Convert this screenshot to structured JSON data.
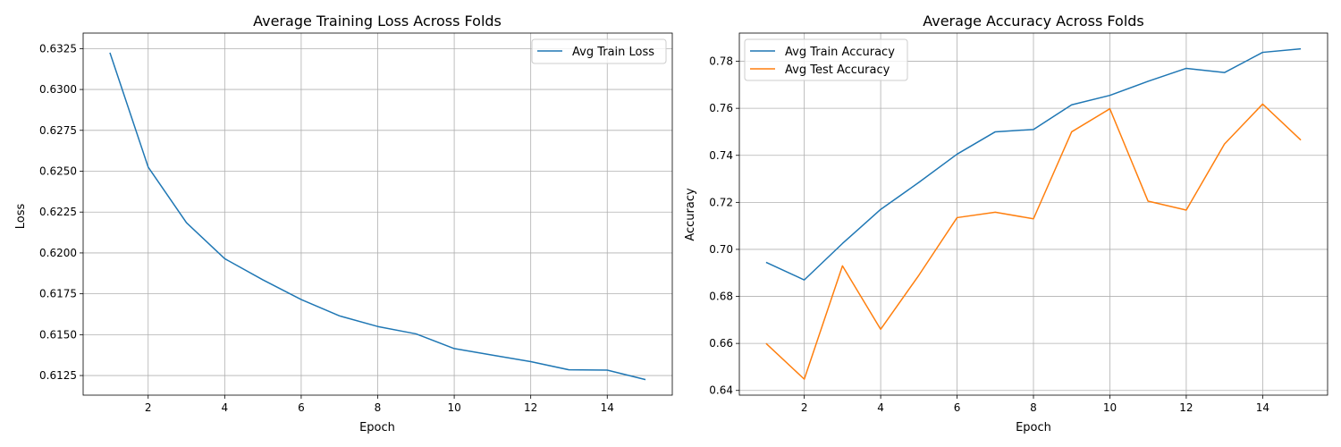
{
  "chart_data": [
    {
      "type": "line",
      "title": "Average Training Loss Across Folds",
      "xlabel": "Epoch",
      "ylabel": "Loss",
      "xlim": [
        0.3,
        15.7
      ],
      "ylim": [
        0.6113,
        0.63345
      ],
      "xticks": [
        2,
        4,
        6,
        8,
        10,
        12,
        14
      ],
      "yticks": [
        0.6125,
        0.615,
        0.6175,
        0.62,
        0.6225,
        0.625,
        0.6275,
        0.63,
        0.6325
      ],
      "ytick_decimals": 4,
      "grid": true,
      "legend_position": "top-right",
      "x": [
        1,
        2,
        3,
        4,
        5,
        6,
        7,
        8,
        9,
        10,
        11,
        12,
        13,
        14,
        15
      ],
      "series": [
        {
          "name": "Avg Train Loss",
          "color": "#1f77b4",
          "values": [
            0.63225,
            0.62525,
            0.62185,
            0.61965,
            0.61835,
            0.61715,
            0.61615,
            0.6155,
            0.61505,
            0.61415,
            0.61375,
            0.61335,
            0.61285,
            0.61283,
            0.61225
          ]
        }
      ]
    },
    {
      "type": "line",
      "title": "Average Accuracy Across Folds",
      "xlabel": "Epoch",
      "ylabel": "Accuracy",
      "xlim": [
        0.3,
        15.7
      ],
      "ylim": [
        0.638,
        0.792
      ],
      "xticks": [
        2,
        4,
        6,
        8,
        10,
        12,
        14
      ],
      "yticks": [
        0.64,
        0.66,
        0.68,
        0.7,
        0.72,
        0.74,
        0.76,
        0.78
      ],
      "ytick_decimals": 2,
      "grid": true,
      "legend_position": "top-left",
      "x": [
        1,
        2,
        3,
        4,
        5,
        6,
        7,
        8,
        9,
        10,
        11,
        12,
        13,
        14,
        15
      ],
      "series": [
        {
          "name": "Avg Train Accuracy",
          "color": "#1f77b4",
          "values": [
            0.6945,
            0.687,
            0.7025,
            0.717,
            0.7285,
            0.7405,
            0.75,
            0.751,
            0.7615,
            0.7655,
            0.7715,
            0.777,
            0.7752,
            0.7838,
            0.7853
          ]
        },
        {
          "name": "Avg Test Accuracy",
          "color": "#ff7f0e",
          "values": [
            0.66,
            0.6448,
            0.693,
            0.666,
            0.689,
            0.7135,
            0.7158,
            0.713,
            0.75,
            0.7598,
            0.7205,
            0.7167,
            0.7448,
            0.7618,
            0.7465
          ]
        }
      ]
    }
  ]
}
